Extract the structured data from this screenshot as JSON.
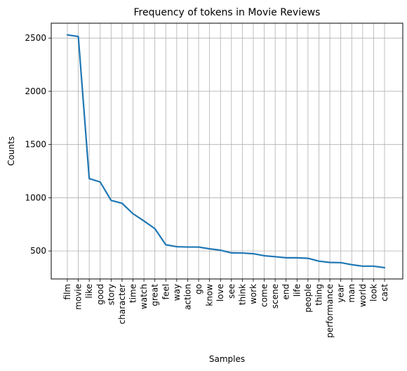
{
  "chart_data": {
    "type": "line",
    "title": "Frequency of tokens in Movie Reviews",
    "xlabel": "Samples",
    "ylabel": "Counts",
    "categories": [
      "film",
      "movie",
      "like",
      "good",
      "story",
      "character",
      "time",
      "watch",
      "great",
      "feel",
      "way",
      "action",
      "go",
      "know",
      "love",
      "see",
      "think",
      "work",
      "come",
      "scene",
      "end",
      "life",
      "people",
      "thing",
      "performance",
      "year",
      "man",
      "world",
      "look",
      "cast"
    ],
    "values": [
      2530,
      2515,
      1180,
      1148,
      975,
      948,
      850,
      782,
      710,
      558,
      540,
      537,
      537,
      520,
      507,
      482,
      481,
      474,
      455,
      446,
      436,
      436,
      431,
      404,
      392,
      390,
      371,
      357,
      357,
      343
    ],
    "yticks": [
      500,
      1000,
      1500,
      2000,
      2500
    ],
    "ylim": [
      237,
      2640
    ],
    "grid": true,
    "line_color": "#1f77b4"
  }
}
